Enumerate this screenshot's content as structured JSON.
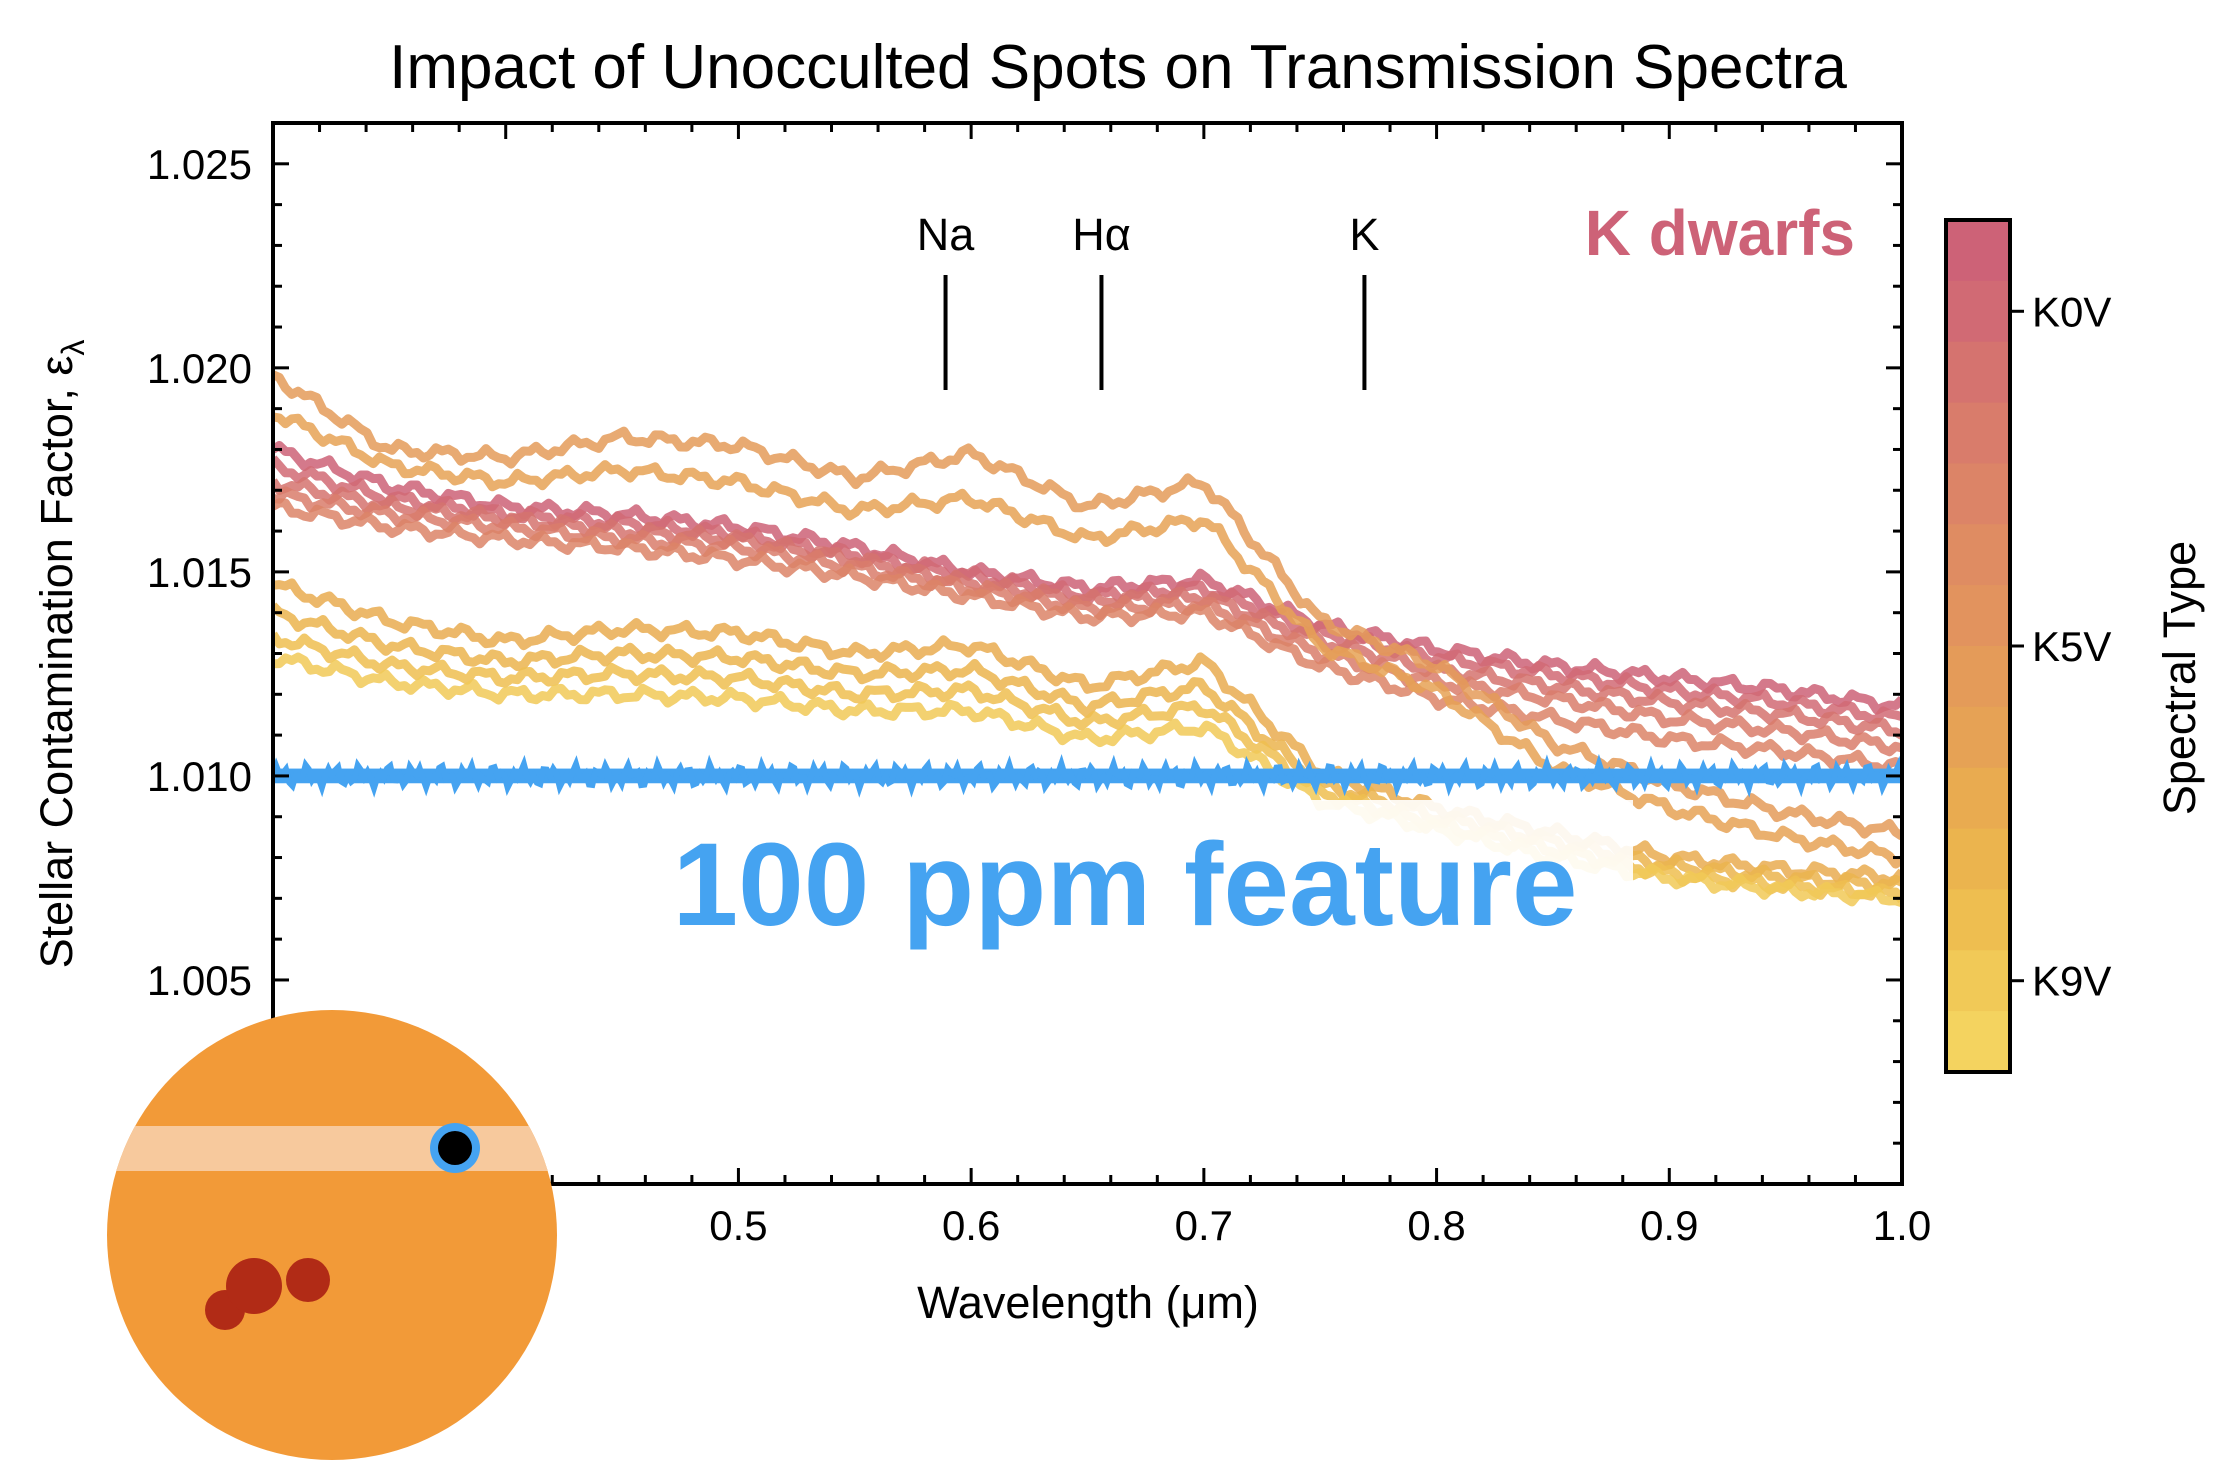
{
  "chart_data": {
    "type": "line",
    "title": "Impact of Unocculted Spots on Transmission Spectra",
    "xlabel": "Wavelength (μm)",
    "ylabel": "Stellar Contamination Factor, ε",
    "ylabel_subscript": "λ",
    "xlim": [
      0.3,
      1.0
    ],
    "ylim": [
      1.0,
      1.026
    ],
    "xticks": [
      0.5,
      0.6,
      0.7,
      0.8,
      0.9,
      1.0
    ],
    "xtick_labels": [
      "0.5",
      "0.6",
      "0.7",
      "0.8",
      "0.9",
      "1.0"
    ],
    "yticks": [
      1.005,
      1.01,
      1.015,
      1.02,
      1.025
    ],
    "ytick_labels": [
      "1.005",
      "1.010",
      "1.015",
      "1.020",
      "1.025"
    ],
    "grid": false,
    "line_labels": [
      {
        "text": "Na",
        "x": 0.589
      },
      {
        "text": "Hα",
        "x": 0.656
      },
      {
        "text": "K",
        "x": 0.769
      }
    ],
    "annotations": {
      "group": "K dwarfs",
      "feature": "100 ppm feature",
      "feature_level": 1.01,
      "feature_amplitude": 0.0003
    },
    "colorbar": {
      "label": "Spectral Type",
      "tick_labels": [
        "K0V",
        "K5V",
        "K9V"
      ],
      "colors": [
        "#cd6277",
        "#d16a74",
        "#d5736f",
        "#d97c6b",
        "#dc8467",
        "#df8c62",
        "#e2935e",
        "#e49b59",
        "#e6a255",
        "#e9ab50",
        "#ebb44e",
        "#eebe50",
        "#f1c957",
        "#f4d35f"
      ]
    },
    "series": [
      {
        "color": "#cd6277",
        "values": [
          [
            0.3,
            1.018
          ],
          [
            0.35,
            1.0171
          ],
          [
            0.4,
            1.0166
          ],
          [
            0.45,
            1.0164
          ],
          [
            0.5,
            1.0161
          ],
          [
            0.55,
            1.0156
          ],
          [
            0.6,
            1.015
          ],
          [
            0.65,
            1.0146
          ],
          [
            0.7,
            1.0148
          ],
          [
            0.75,
            1.0137
          ],
          [
            0.8,
            1.0131
          ],
          [
            0.85,
            1.0127
          ],
          [
            0.9,
            1.0124
          ],
          [
            0.95,
            1.0121
          ],
          [
            1.0,
            1.0117
          ]
        ]
      },
      {
        "color": "#d16a74",
        "values": [
          [
            0.3,
            1.0176
          ],
          [
            0.35,
            1.0168
          ],
          [
            0.4,
            1.0164
          ],
          [
            0.45,
            1.0162
          ],
          [
            0.5,
            1.0159
          ],
          [
            0.55,
            1.0154
          ],
          [
            0.6,
            1.0149
          ],
          [
            0.65,
            1.0144
          ],
          [
            0.7,
            1.0146
          ],
          [
            0.75,
            1.0135
          ],
          [
            0.8,
            1.0129
          ],
          [
            0.85,
            1.0125
          ],
          [
            0.9,
            1.0121
          ],
          [
            0.95,
            1.0118
          ],
          [
            1.0,
            1.0114
          ]
        ]
      },
      {
        "color": "#d5736f",
        "values": [
          [
            0.3,
            1.0172
          ],
          [
            0.35,
            1.0166
          ],
          [
            0.4,
            1.0163
          ],
          [
            0.45,
            1.016
          ],
          [
            0.5,
            1.0158
          ],
          [
            0.55,
            1.0153
          ],
          [
            0.6,
            1.0147
          ],
          [
            0.65,
            1.0143
          ],
          [
            0.7,
            1.0144
          ],
          [
            0.75,
            1.0133
          ],
          [
            0.8,
            1.0126
          ],
          [
            0.85,
            1.0122
          ],
          [
            0.9,
            1.0118
          ],
          [
            0.95,
            1.0115
          ],
          [
            1.0,
            1.0111
          ]
        ]
      },
      {
        "color": "#d97c6b",
        "values": [
          [
            0.3,
            1.0169
          ],
          [
            0.35,
            1.0164
          ],
          [
            0.4,
            1.0161
          ],
          [
            0.45,
            1.0158
          ],
          [
            0.5,
            1.0156
          ],
          [
            0.55,
            1.0151
          ],
          [
            0.6,
            1.0146
          ],
          [
            0.65,
            1.0141
          ],
          [
            0.7,
            1.0142
          ],
          [
            0.75,
            1.013
          ],
          [
            0.8,
            1.0123
          ],
          [
            0.85,
            1.0119
          ],
          [
            0.9,
            1.0114
          ],
          [
            0.95,
            1.0111
          ],
          [
            1.0,
            1.0107
          ]
        ]
      },
      {
        "color": "#dc8467",
        "values": [
          [
            0.3,
            1.0166
          ],
          [
            0.35,
            1.0161
          ],
          [
            0.4,
            1.0158
          ],
          [
            0.45,
            1.0156
          ],
          [
            0.5,
            1.0153
          ],
          [
            0.55,
            1.0149
          ],
          [
            0.6,
            1.0144
          ],
          [
            0.65,
            1.0139
          ],
          [
            0.7,
            1.014
          ],
          [
            0.75,
            1.0127
          ],
          [
            0.8,
            1.0119
          ],
          [
            0.85,
            1.0114
          ],
          [
            0.9,
            1.0109
          ],
          [
            0.95,
            1.0106
          ],
          [
            1.0,
            1.0102
          ]
        ]
      },
      {
        "color": "#e49b59",
        "values": [
          [
            0.3,
            1.0198
          ],
          [
            0.35,
            1.018
          ],
          [
            0.4,
            1.0178
          ],
          [
            0.45,
            1.0183
          ],
          [
            0.5,
            1.0181
          ],
          [
            0.55,
            1.0173
          ],
          [
            0.6,
            1.0179
          ],
          [
            0.65,
            1.0166
          ],
          [
            0.7,
            1.0172
          ],
          [
            0.75,
            1.0138
          ],
          [
            0.8,
            1.0127
          ],
          [
            0.85,
            1.0108
          ],
          [
            0.9,
            1.0098
          ],
          [
            0.95,
            1.0091
          ],
          [
            1.0,
            1.0086
          ]
        ]
      },
      {
        "color": "#e6a255",
        "values": [
          [
            0.3,
            1.0189
          ],
          [
            0.35,
            1.0176
          ],
          [
            0.4,
            1.0172
          ],
          [
            0.45,
            1.0175
          ],
          [
            0.5,
            1.0172
          ],
          [
            0.55,
            1.0165
          ],
          [
            0.6,
            1.0168
          ],
          [
            0.65,
            1.0158
          ],
          [
            0.7,
            1.0163
          ],
          [
            0.75,
            1.0132
          ],
          [
            0.8,
            1.0121
          ],
          [
            0.85,
            1.0102
          ],
          [
            0.9,
            1.0092
          ],
          [
            0.95,
            1.0085
          ],
          [
            1.0,
            1.008
          ]
        ]
      },
      {
        "color": "#e9ab50",
        "values": [
          [
            0.3,
            1.0147
          ],
          [
            0.35,
            1.0138
          ],
          [
            0.4,
            1.0133
          ],
          [
            0.45,
            1.0136
          ],
          [
            0.5,
            1.0135
          ],
          [
            0.55,
            1.013
          ],
          [
            0.6,
            1.0132
          ],
          [
            0.65,
            1.0122
          ],
          [
            0.7,
            1.0128
          ],
          [
            0.75,
            1.0101
          ],
          [
            0.8,
            1.0092
          ],
          [
            0.85,
            1.0086
          ],
          [
            0.9,
            1.008
          ],
          [
            0.95,
            1.0077
          ],
          [
            1.0,
            1.0075
          ]
        ]
      },
      {
        "color": "#ebb44e",
        "values": [
          [
            0.3,
            1.014
          ],
          [
            0.35,
            1.0132
          ],
          [
            0.4,
            1.0128
          ],
          [
            0.45,
            1.013
          ],
          [
            0.5,
            1.0129
          ],
          [
            0.55,
            1.0125
          ],
          [
            0.6,
            1.0126
          ],
          [
            0.65,
            1.0117
          ],
          [
            0.7,
            1.0122
          ],
          [
            0.75,
            1.0098
          ],
          [
            0.8,
            1.009
          ],
          [
            0.85,
            1.0084
          ],
          [
            0.9,
            1.0078
          ],
          [
            0.95,
            1.0075
          ],
          [
            1.0,
            1.0073
          ]
        ]
      },
      {
        "color": "#eebe50",
        "values": [
          [
            0.3,
            1.0134
          ],
          [
            0.35,
            1.0127
          ],
          [
            0.4,
            1.0124
          ],
          [
            0.45,
            1.0125
          ],
          [
            0.5,
            1.0124
          ],
          [
            0.55,
            1.012
          ],
          [
            0.6,
            1.0121
          ],
          [
            0.65,
            1.0113
          ],
          [
            0.7,
            1.0117
          ],
          [
            0.75,
            1.0096
          ],
          [
            0.8,
            1.0088
          ],
          [
            0.85,
            1.0082
          ],
          [
            0.9,
            1.0076
          ],
          [
            0.95,
            1.0073
          ],
          [
            1.0,
            1.0071
          ]
        ]
      },
      {
        "color": "#f1c957",
        "values": [
          [
            0.3,
            1.0129
          ],
          [
            0.35,
            1.0123
          ],
          [
            0.4,
            1.012
          ],
          [
            0.45,
            1.012
          ],
          [
            0.5,
            1.0119
          ],
          [
            0.55,
            1.0116
          ],
          [
            0.6,
            1.0116
          ],
          [
            0.65,
            1.0109
          ],
          [
            0.7,
            1.0112
          ],
          [
            0.75,
            1.0094
          ],
          [
            0.8,
            1.0087
          ],
          [
            0.85,
            1.008
          ],
          [
            0.9,
            1.0075
          ],
          [
            0.95,
            1.0072
          ],
          [
            1.0,
            1.007
          ]
        ]
      }
    ]
  },
  "illustration": {
    "star_color": "#f29a38",
    "transit_chord_color": "#f7c99d",
    "planet_color": "#000000",
    "planet_ring_color": "#45a3f1",
    "spot_color": "#b12b16",
    "feature_color": "#45a3f1"
  }
}
